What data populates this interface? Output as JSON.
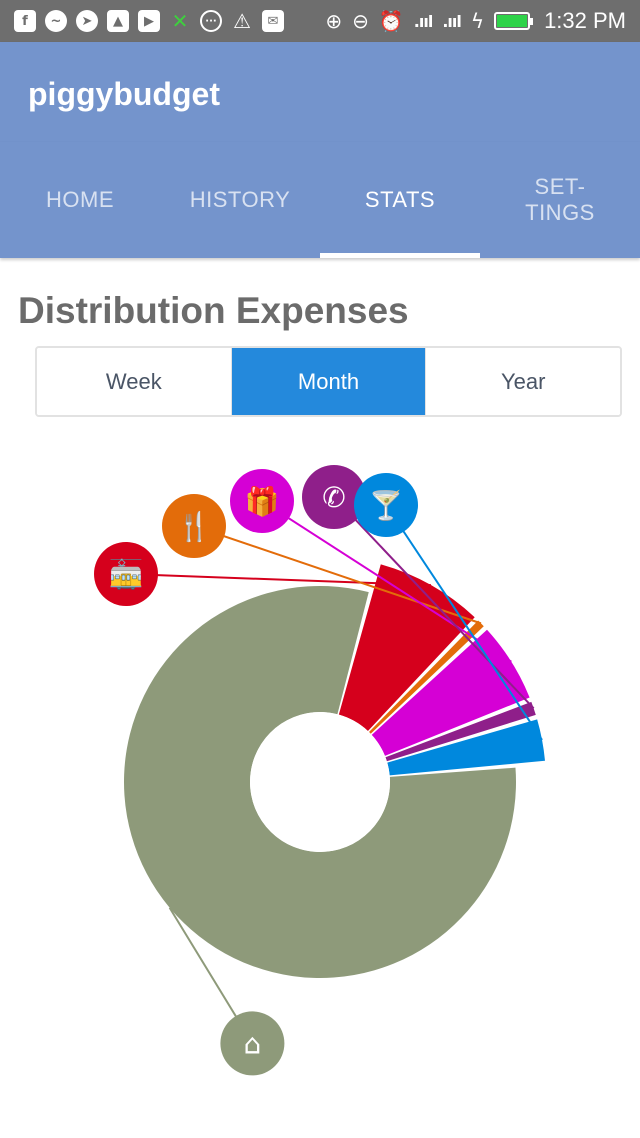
{
  "status_bar": {
    "time": "1:32 PM",
    "left_icons": [
      "facebook-icon",
      "messenger-icon",
      "telegram-icon",
      "gallery-icon",
      "youtube-icon",
      "excel-icon",
      "messages-icon",
      "warning-icon",
      "email-icon"
    ],
    "right_icons": [
      "add-circle-icon",
      "do-not-disturb-icon",
      "alarm-icon",
      "signal-icon",
      "signal-icon",
      "charging-icon",
      "battery-icon"
    ],
    "battery_color": "#2fd34a"
  },
  "app": {
    "title": "piggybudget",
    "bar_color": "#7494cc"
  },
  "tabs": [
    {
      "label": "HOME",
      "active": false
    },
    {
      "label": "HISTORY",
      "active": false
    },
    {
      "label": "STATS",
      "active": true
    },
    {
      "label": "SET-\nTINGS",
      "active": false
    }
  ],
  "section": {
    "title": "Distribution Expenses"
  },
  "period_selector": {
    "options": [
      "Week",
      "Month",
      "Year"
    ],
    "selected": "Month",
    "accent": "#2489dc"
  },
  "chart_data": {
    "type": "pie",
    "variant": "donut",
    "title": "",
    "series": [
      {
        "icon": "transport-icon",
        "value": 8.0,
        "color": "#d5001c"
      },
      {
        "icon": "restaurant-icon",
        "value": 0.9,
        "color": "#e36c0a"
      },
      {
        "icon": "gift-icon",
        "value": 6.0,
        "color": "#d500d5"
      },
      {
        "icon": "phone-icon",
        "value": 1.3,
        "color": "#8f1f8a"
      },
      {
        "icon": "drinks-icon",
        "value": 3.3,
        "color": "#0088dd"
      },
      {
        "icon": "home-icon",
        "value": 80.5,
        "color": "#8e9a7a"
      }
    ]
  }
}
